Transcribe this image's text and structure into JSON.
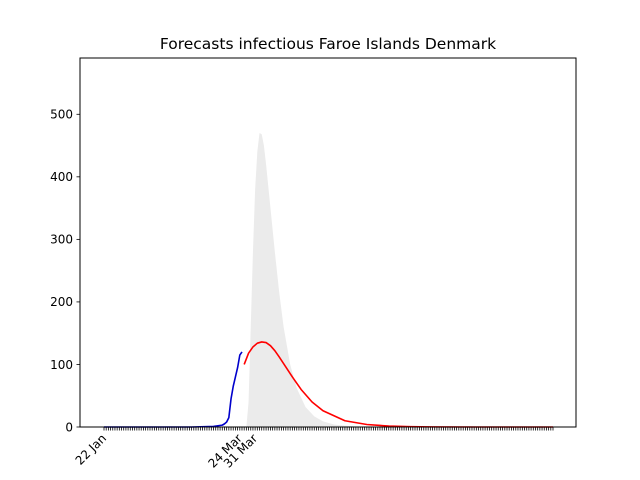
{
  "chart_data": {
    "type": "line",
    "title": "Forecasts infectious Faroe Islands Denmark",
    "xlabel": "",
    "ylabel": "",
    "x_day_range": [
      0,
      205
    ],
    "ylim": [
      0,
      590
    ],
    "yticks": [
      0,
      100,
      200,
      300,
      400,
      500
    ],
    "xtick_labels": [
      {
        "day": 0,
        "label": "22 Jan"
      },
      {
        "day": 62,
        "label": "24 Mar"
      },
      {
        "day": 69,
        "label": "31 Mar"
      }
    ],
    "grid": false,
    "legend": "none",
    "colors": {
      "observed": "#0000cc",
      "forecast": "#ff0000",
      "band": "#ebebeb"
    },
    "series": [
      {
        "role": "observed",
        "x": [
          0,
          40,
          50,
          52,
          54,
          55,
          56,
          57,
          58,
          59,
          60,
          61,
          62,
          63
        ],
        "y": [
          0,
          0,
          1,
          2,
          3,
          5,
          8,
          15,
          45,
          65,
          80,
          95,
          115,
          120
        ]
      },
      {
        "role": "forecast",
        "x": [
          64,
          66,
          68,
          70,
          72,
          74,
          76,
          78,
          80,
          83,
          86,
          90,
          95,
          100,
          110,
          120,
          130,
          140,
          150,
          170,
          190,
          205
        ],
        "y": [
          100,
          118,
          128,
          134,
          136,
          135,
          130,
          122,
          112,
          96,
          80,
          60,
          40,
          26,
          10,
          4,
          1.5,
          0.5,
          0.2,
          0,
          0,
          0
        ]
      },
      {
        "role": "band",
        "x": [
          65,
          66,
          67,
          68,
          69,
          70,
          71,
          72,
          73,
          74,
          75,
          76,
          78,
          80,
          82,
          85,
          88,
          92,
          96,
          100,
          105,
          110,
          115,
          120,
          130,
          140,
          150,
          205
        ],
        "lower": [
          0,
          0,
          0,
          0,
          0,
          0,
          0,
          0,
          0,
          0,
          0,
          0,
          0,
          0,
          0,
          0,
          0,
          0,
          0,
          0,
          0,
          0,
          0,
          0,
          0,
          0,
          0,
          0
        ],
        "upper": [
          0,
          40,
          160,
          280,
          380,
          440,
          470,
          468,
          450,
          420,
          385,
          350,
          280,
          215,
          160,
          100,
          62,
          32,
          17,
          9,
          4,
          2,
          1,
          0.5,
          0.2,
          0,
          0,
          0
        ]
      }
    ]
  }
}
